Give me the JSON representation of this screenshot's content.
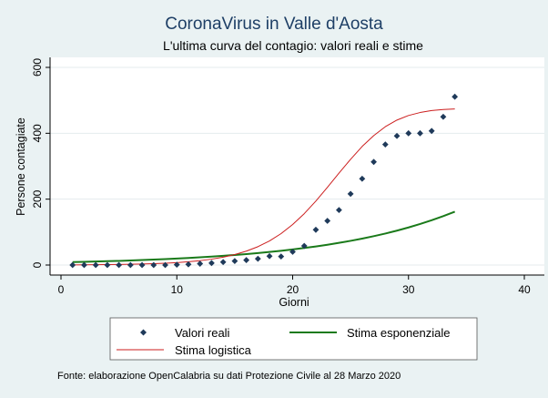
{
  "chart_data": {
    "type": "scatter",
    "title": "CoronaVirus in Valle d'Aosta",
    "subtitle": "L'ultima curva del contagio: valori reali e stime",
    "xlabel": "Giorni",
    "ylabel": "Persone contagiate",
    "xlim": [
      0,
      40
    ],
    "ylim": [
      -10,
      620
    ],
    "x_ticks": [
      "0",
      "10",
      "20",
      "30",
      "40"
    ],
    "y_ticks": [
      "0",
      "200",
      "400",
      "600"
    ],
    "grid": "horizontal",
    "legend_position": "bottom",
    "series": [
      {
        "name": "Valori reali",
        "kind": "scatter",
        "color": "#1f3a5a",
        "points": [
          [
            1,
            0
          ],
          [
            2,
            0
          ],
          [
            3,
            0
          ],
          [
            4,
            0
          ],
          [
            5,
            0
          ],
          [
            6,
            0
          ],
          [
            7,
            0
          ],
          [
            8,
            0
          ],
          [
            9,
            0
          ],
          [
            10,
            1
          ],
          [
            11,
            2
          ],
          [
            12,
            4
          ],
          [
            13,
            6
          ],
          [
            14,
            9
          ],
          [
            15,
            12
          ],
          [
            16,
            15
          ],
          [
            17,
            19
          ],
          [
            18,
            27
          ],
          [
            19,
            26
          ],
          [
            20,
            40
          ],
          [
            21,
            58
          ],
          [
            22,
            107
          ],
          [
            23,
            134
          ],
          [
            24,
            167
          ],
          [
            25,
            216
          ],
          [
            26,
            262
          ],
          [
            27,
            313
          ],
          [
            28,
            366
          ],
          [
            29,
            392
          ],
          [
            30,
            400
          ],
          [
            31,
            400
          ],
          [
            32,
            407
          ],
          [
            33,
            450
          ],
          [
            34,
            511
          ]
        ]
      },
      {
        "name": "Stima esponenziale",
        "kind": "line",
        "color": "#1a7a1a",
        "points": [
          [
            1,
            9
          ],
          [
            2,
            9.7
          ],
          [
            3,
            10.6
          ],
          [
            4,
            11.6
          ],
          [
            5,
            12.6
          ],
          [
            6,
            13.8
          ],
          [
            7,
            15.1
          ],
          [
            8,
            16.5
          ],
          [
            9,
            18
          ],
          [
            10,
            19.6
          ],
          [
            11,
            21.4
          ],
          [
            12,
            23.4
          ],
          [
            13,
            25.5
          ],
          [
            14,
            27.9
          ],
          [
            15,
            30.5
          ],
          [
            16,
            33.3
          ],
          [
            17,
            36.3
          ],
          [
            18,
            39.7
          ],
          [
            19,
            43.3
          ],
          [
            20,
            47.3
          ],
          [
            21,
            51.7
          ],
          [
            22,
            56.4
          ],
          [
            23,
            61.6
          ],
          [
            24,
            67.3
          ],
          [
            25,
            73.4
          ],
          [
            26,
            80.2
          ],
          [
            27,
            87.6
          ],
          [
            28,
            95.6
          ],
          [
            29,
            104.4
          ],
          [
            30,
            114
          ],
          [
            31,
            124.5
          ],
          [
            32,
            135.9
          ],
          [
            33,
            148.4
          ],
          [
            34,
            162
          ]
        ]
      },
      {
        "name": "Stima logistica",
        "kind": "line",
        "color": "#cc1e1e",
        "points": [
          [
            1,
            0.5
          ],
          [
            2,
            0.7
          ],
          [
            3,
            0.9
          ],
          [
            4,
            1.3
          ],
          [
            5,
            1.7
          ],
          [
            6,
            2.3
          ],
          [
            7,
            3.1
          ],
          [
            8,
            4.1
          ],
          [
            9,
            5.5
          ],
          [
            10,
            7.4
          ],
          [
            11,
            9.9
          ],
          [
            12,
            13.3
          ],
          [
            13,
            17.8
          ],
          [
            14,
            23.8
          ],
          [
            15,
            31.7
          ],
          [
            16,
            42.1
          ],
          [
            17,
            55.7
          ],
          [
            18,
            73.2
          ],
          [
            19,
            95.4
          ],
          [
            20,
            123
          ],
          [
            21,
            156
          ],
          [
            22,
            194
          ],
          [
            23,
            236
          ],
          [
            24,
            279
          ],
          [
            25,
            321
          ],
          [
            26,
            360
          ],
          [
            27,
            393
          ],
          [
            28,
            420
          ],
          [
            29,
            440
          ],
          [
            30,
            454
          ],
          [
            31,
            463
          ],
          [
            32,
            469
          ],
          [
            33,
            472
          ],
          [
            34,
            474
          ]
        ]
      }
    ],
    "source": "Fonte: elaborazione OpenCalabria su dati Protezione Civile al 28 Marzo 2020"
  }
}
